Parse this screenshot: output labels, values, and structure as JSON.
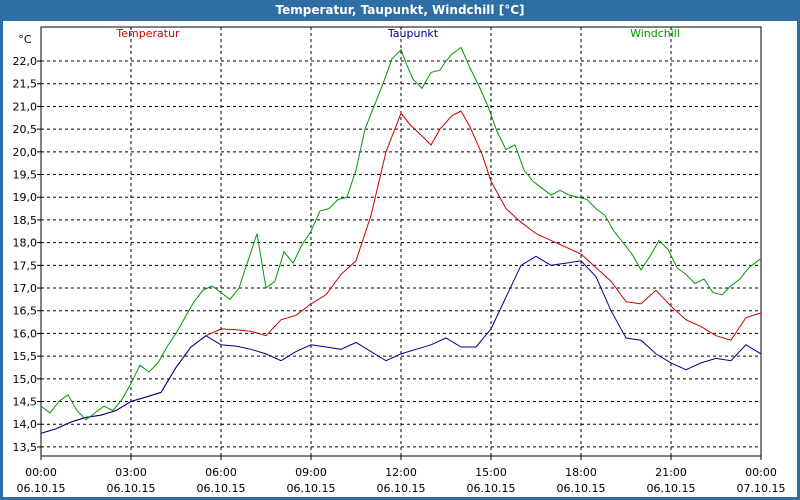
{
  "window": {
    "title": "Temperatur, Taupunkt, Windchill [°C]"
  },
  "chart_data": {
    "type": "line",
    "title": "Temperatur, Taupunkt, Windchill [°C]",
    "ylabel": "°C",
    "xlabel": "",
    "ylim": [
      13.3,
      22.75
    ],
    "xlim": [
      0,
      24
    ],
    "grid": true,
    "y_ticks": [
      "13,5",
      "14,0",
      "14,5",
      "15,0",
      "15,5",
      "16,0",
      "16,5",
      "17,0",
      "17,5",
      "18,0",
      "18,5",
      "19,0",
      "19,5",
      "20,0",
      "20,5",
      "21,0",
      "21,5",
      "22,0"
    ],
    "y_tick_values": [
      13.5,
      14.0,
      14.5,
      15.0,
      15.5,
      16.0,
      16.5,
      17.0,
      17.5,
      18.0,
      18.5,
      19.0,
      19.5,
      20.0,
      20.5,
      21.0,
      21.5,
      22.0
    ],
    "x_tick_values": [
      0,
      3,
      6,
      9,
      12,
      15,
      18,
      21,
      24
    ],
    "x_ticks": [
      {
        "time": "00:00",
        "date": "06.10.15"
      },
      {
        "time": "03:00",
        "date": "06.10.15"
      },
      {
        "time": "06:00",
        "date": "06.10.15"
      },
      {
        "time": "09:00",
        "date": "06.10.15"
      },
      {
        "time": "12:00",
        "date": "06.10.15"
      },
      {
        "time": "15:00",
        "date": "06.10.15"
      },
      {
        "time": "18:00",
        "date": "06.10.15"
      },
      {
        "time": "21:00",
        "date": "06.10.15"
      },
      {
        "time": "00:00",
        "date": "07.10.15"
      }
    ],
    "series": [
      {
        "name": "Temperatur",
        "color": "#cc0000",
        "x": [
          0,
          0.5,
          1,
          1.5,
          2,
          2.5,
          3,
          3.5,
          4,
          4.5,
          5,
          5.5,
          6,
          6.5,
          7,
          7.5,
          8,
          8.5,
          9,
          9.5,
          10,
          10.5,
          11,
          11.5,
          12,
          12.3,
          12.7,
          13,
          13.3,
          13.7,
          14,
          14.3,
          14.7,
          15,
          15.5,
          16,
          16.5,
          17,
          17.5,
          18,
          18.5,
          19,
          19.5,
          20,
          20.5,
          21,
          21.5,
          22,
          22.5,
          23,
          23.5,
          24
        ],
        "y": [
          13.8,
          13.9,
          14.05,
          14.15,
          14.2,
          14.3,
          14.5,
          14.6,
          14.7,
          15.25,
          15.7,
          15.95,
          16.1,
          16.08,
          16.05,
          15.95,
          16.3,
          16.4,
          16.65,
          16.85,
          17.3,
          17.6,
          18.6,
          20.0,
          20.85,
          20.6,
          20.35,
          20.15,
          20.5,
          20.8,
          20.9,
          20.55,
          19.95,
          19.35,
          18.75,
          18.45,
          18.2,
          18.05,
          17.9,
          17.75,
          17.45,
          17.15,
          16.7,
          16.65,
          16.95,
          16.6,
          16.3,
          16.15,
          15.95,
          15.85,
          16.35,
          16.45
        ]
      },
      {
        "name": "Taupunkt",
        "color": "#00008b",
        "x": [
          0,
          0.5,
          1,
          1.5,
          2,
          2.5,
          3,
          3.5,
          4,
          4.5,
          5,
          5.5,
          6,
          6.5,
          7,
          7.5,
          8,
          8.5,
          9,
          9.5,
          10,
          10.5,
          11,
          11.5,
          12,
          12.5,
          13,
          13.5,
          14,
          14.5,
          15,
          15.5,
          16,
          16.5,
          17,
          17.5,
          18,
          18.5,
          19,
          19.5,
          20,
          20.5,
          21,
          21.5,
          22,
          22.5,
          23,
          23.5,
          24
        ],
        "y": [
          13.8,
          13.9,
          14.05,
          14.15,
          14.2,
          14.3,
          14.5,
          14.6,
          14.7,
          15.25,
          15.7,
          15.95,
          15.75,
          15.72,
          15.65,
          15.55,
          15.4,
          15.6,
          15.75,
          15.7,
          15.65,
          15.8,
          15.6,
          15.4,
          15.55,
          15.65,
          15.75,
          15.9,
          15.7,
          15.7,
          16.1,
          16.8,
          17.5,
          17.7,
          17.5,
          17.55,
          17.6,
          17.25,
          16.5,
          15.9,
          15.85,
          15.55,
          15.35,
          15.2,
          15.35,
          15.45,
          15.4,
          15.75,
          15.55
        ]
      },
      {
        "name": "Windchill",
        "color": "#009900",
        "x": [
          0,
          0.3,
          0.6,
          0.9,
          1.2,
          1.5,
          1.8,
          2.1,
          2.4,
          2.7,
          3,
          3.3,
          3.6,
          3.9,
          4.2,
          4.5,
          4.8,
          5.1,
          5.4,
          5.7,
          6,
          6.3,
          6.6,
          6.9,
          7.2,
          7.5,
          7.8,
          8.1,
          8.4,
          8.7,
          9,
          9.3,
          9.6,
          9.9,
          10.2,
          10.5,
          10.8,
          11.1,
          11.4,
          11.7,
          12,
          12.2,
          12.4,
          12.7,
          13,
          13.3,
          13.5,
          13.7,
          14,
          14.3,
          14.6,
          14.9,
          15.2,
          15.5,
          15.8,
          16.1,
          16.4,
          16.7,
          17,
          17.3,
          17.6,
          17.9,
          18.2,
          18.5,
          18.8,
          19.1,
          19.4,
          19.7,
          20,
          20.3,
          20.6,
          20.9,
          21.2,
          21.5,
          21.8,
          22.1,
          22.4,
          22.7,
          23,
          23.3,
          23.6,
          23.9,
          24
        ],
        "y": [
          14.4,
          14.25,
          14.5,
          14.65,
          14.3,
          14.1,
          14.25,
          14.4,
          14.3,
          14.55,
          14.9,
          15.3,
          15.15,
          15.35,
          15.7,
          16.0,
          16.35,
          16.7,
          16.95,
          17.05,
          16.9,
          16.75,
          17.0,
          17.6,
          18.2,
          17.0,
          17.15,
          17.8,
          17.55,
          17.95,
          18.25,
          18.7,
          18.75,
          18.95,
          19.0,
          19.6,
          20.5,
          21.0,
          21.5,
          22.05,
          22.25,
          21.9,
          21.6,
          21.4,
          21.75,
          21.8,
          22.0,
          22.15,
          22.3,
          21.85,
          21.45,
          21.0,
          20.45,
          20.05,
          20.15,
          19.6,
          19.35,
          19.2,
          19.05,
          19.15,
          19.05,
          19.0,
          18.95,
          18.75,
          18.6,
          18.25,
          18.0,
          17.75,
          17.4,
          17.7,
          18.05,
          17.85,
          17.45,
          17.3,
          17.1,
          17.2,
          16.9,
          16.85,
          17.05,
          17.2,
          17.45,
          17.6,
          17.65
        ]
      }
    ]
  }
}
